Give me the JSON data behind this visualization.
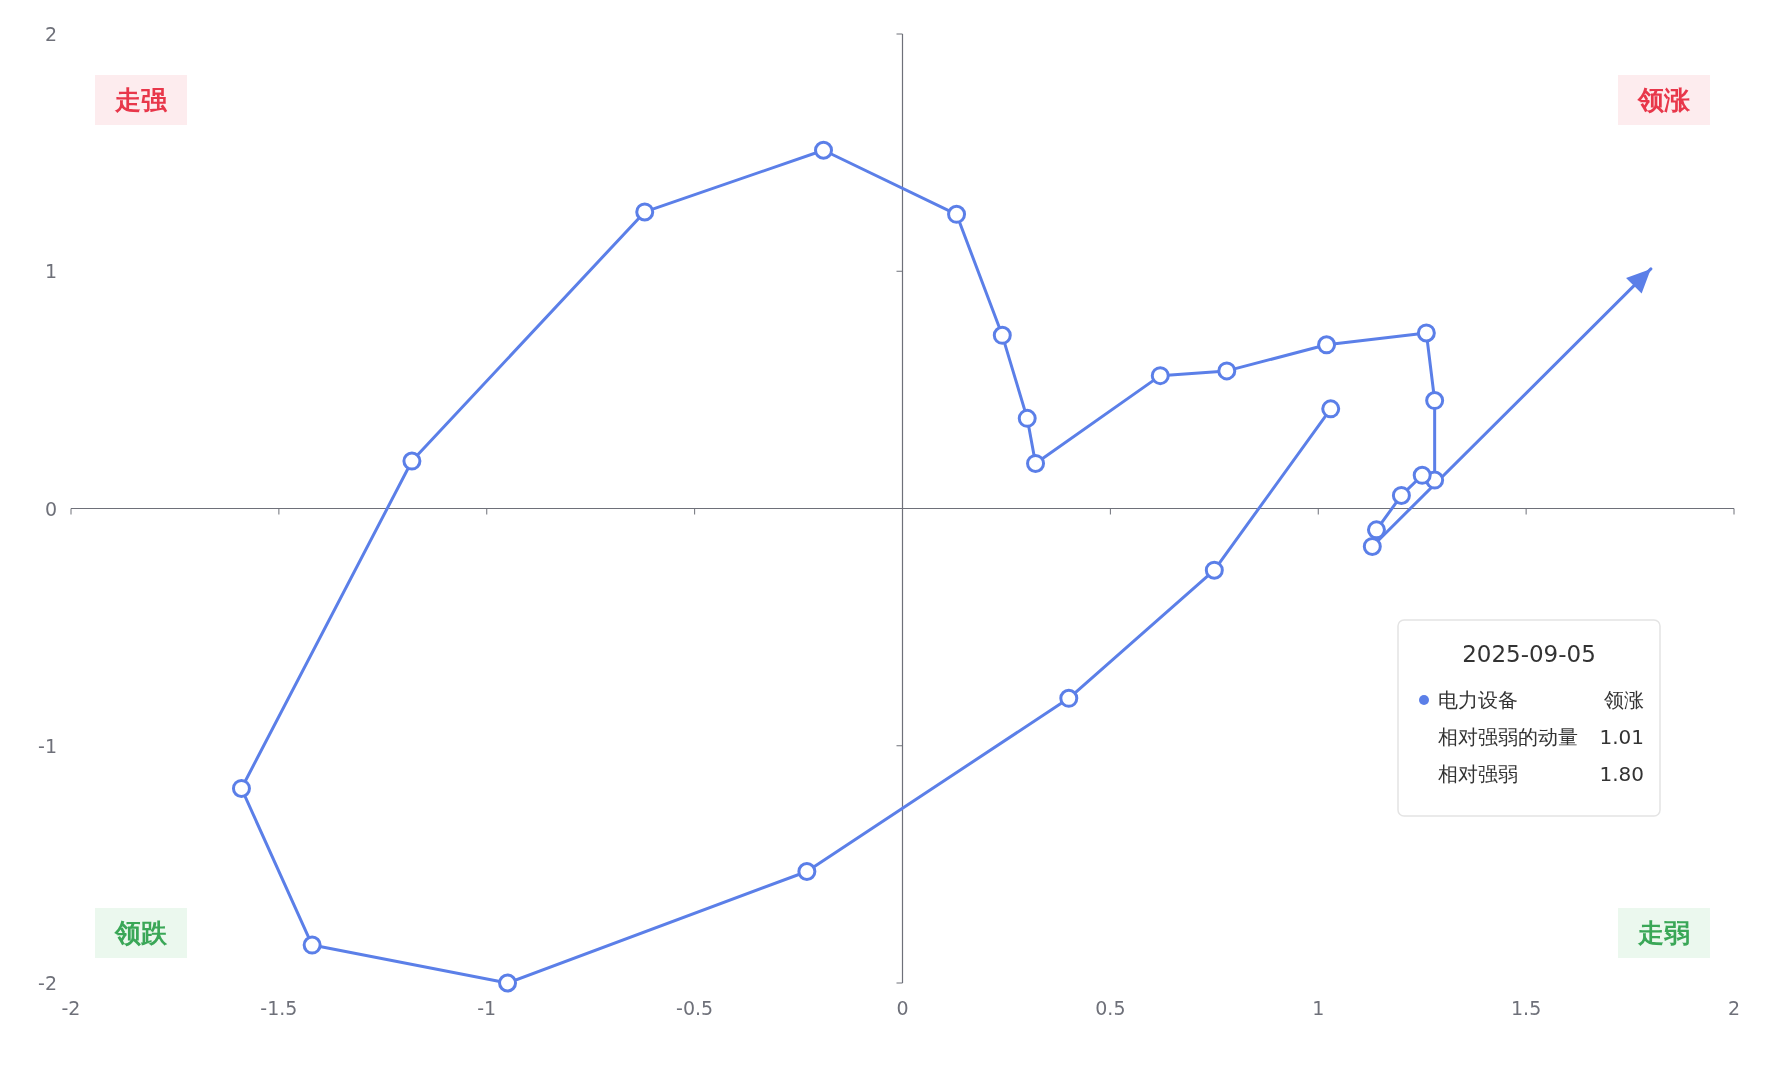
{
  "chart_data": {
    "type": "line",
    "x": [
      1.03,
      0.75,
      0.4,
      -0.23,
      -0.95,
      -1.42,
      -1.59,
      -1.18,
      -0.62,
      -0.19,
      0.13,
      0.24,
      0.3,
      0.32,
      0.62,
      0.78,
      1.02,
      1.26,
      1.28,
      1.28,
      1.25,
      1.2,
      1.14,
      1.13,
      1.8
    ],
    "series": [
      {
        "name": "电力设备",
        "color": "#5b7fe8",
        "values": [
          0.42,
          -0.26,
          -0.8,
          -1.53,
          -2.0,
          -1.84,
          -1.18,
          0.2,
          1.25,
          1.51,
          1.24,
          0.73,
          0.38,
          0.19,
          0.56,
          0.58,
          0.69,
          0.74,
          0.455,
          0.12,
          0.14,
          0.055,
          -0.09,
          -0.16,
          1.01
        ]
      }
    ],
    "xlim": [
      -2,
      2
    ],
    "xticks": [
      -2,
      -1.5,
      -1,
      -0.5,
      0,
      0.5,
      1,
      1.5,
      2
    ],
    "ylim": [
      -2,
      2
    ],
    "yticks": [
      -2,
      -1,
      0,
      1,
      2
    ],
    "marker": "circle",
    "legend": "bottom right",
    "annotations": [
      "走强",
      "领涨",
      "领跌",
      "走弱",
      "2025-09-05",
      "领涨",
      "相对强弱的动量",
      "1.01",
      "相对强弱",
      "1.80"
    ]
  }
}
